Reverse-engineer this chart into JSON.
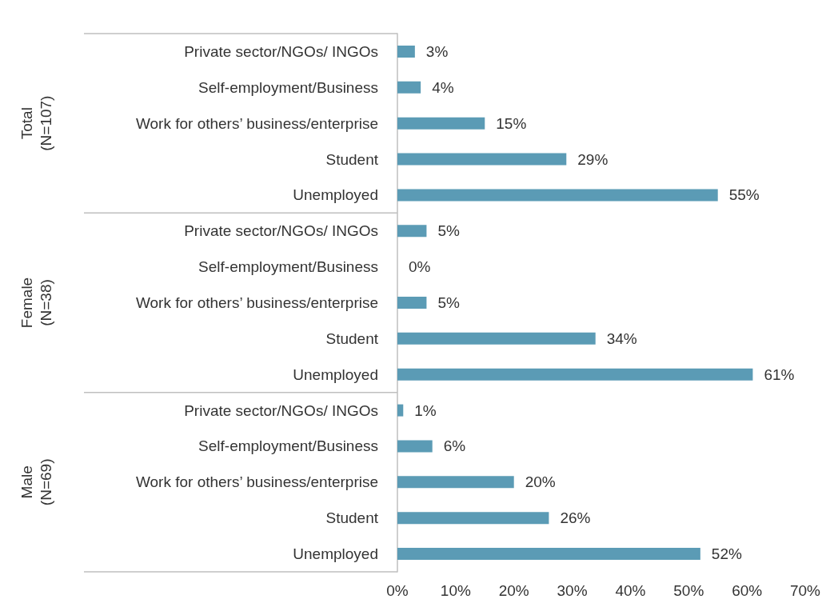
{
  "chart_data": {
    "type": "bar",
    "orientation": "horizontal",
    "categories": [
      "Private sector/NGOs/ INGOs",
      "Self-employment/Business",
      "Work for others’ business/enterprise",
      "Student",
      "Unemployed",
      "Private sector/NGOs/ INGOs",
      "Self-employment/Business",
      "Work for others’ business/enterprise",
      "Student",
      "Unemployed",
      "Private sector/NGOs/ INGOs",
      "Self-employment/Business",
      "Work for others’ business/enterprise",
      "Student",
      "Unemployed"
    ],
    "values": [
      3,
      4,
      15,
      29,
      55,
      5,
      0,
      5,
      34,
      61,
      1,
      6,
      20,
      26,
      52
    ],
    "value_labels": [
      "3%",
      "4%",
      "15%",
      "29%",
      "55%",
      "5%",
      "0%",
      "5%",
      "34%",
      "61%",
      "1%",
      "6%",
      "20%",
      "26%",
      "52%"
    ],
    "color": "#5b9bb5",
    "xlim": [
      0,
      70
    ],
    "xticks": [
      {
        "value": 0,
        "label": "0%"
      },
      {
        "value": 10,
        "label": "10%"
      },
      {
        "value": 20,
        "label": "20%"
      },
      {
        "value": 30,
        "label": "30%"
      },
      {
        "value": 40,
        "label": "40%"
      },
      {
        "value": 50,
        "label": "50%"
      },
      {
        "value": 60,
        "label": "60%"
      },
      {
        "value": 70,
        "label": "70%"
      }
    ],
    "grid": false,
    "annotations": [
      "Total (N=107)",
      "Female (N=38)",
      "Male (N=69)"
    ]
  }
}
